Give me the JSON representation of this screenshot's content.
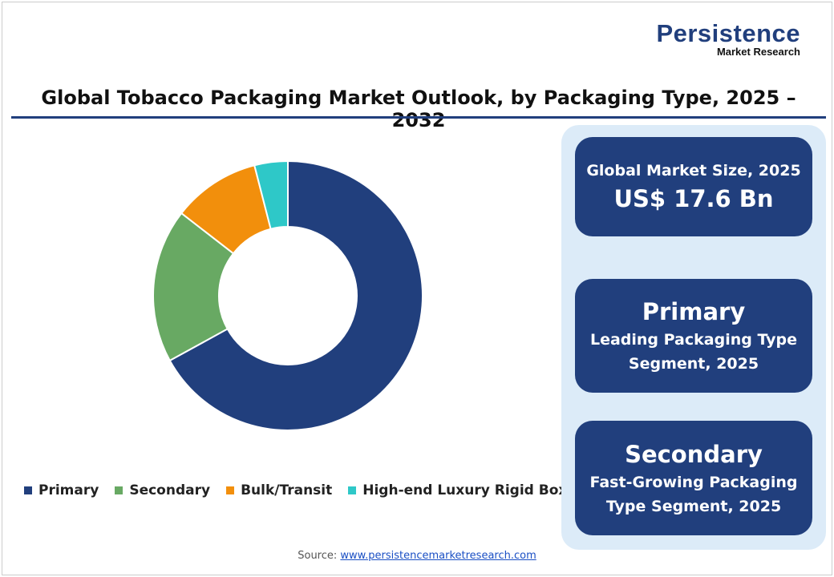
{
  "logo": {
    "line1": "Persistence",
    "line2": "Market Research"
  },
  "chart_data": {
    "type": "pie",
    "subtype": "donut",
    "title": "Global Tobacco Packaging Market Outlook, by Packaging Type, 2025 – 2032",
    "categories": [
      "Primary",
      "Secondary",
      "Bulk/Transit",
      "High-end Luxury Rigid Boxes"
    ],
    "values": [
      67,
      18.5,
      10.5,
      4
    ],
    "unit": "%",
    "colors": [
      "#213f7d",
      "#68a963",
      "#f28f0c",
      "#2ec8c8"
    ],
    "legend_position": "bottom"
  },
  "cards": [
    {
      "line1": "Global Market Size, 2025",
      "line2": "US$ 17.6 Bn"
    },
    {
      "big": "Primary",
      "line1": "Leading Packaging Type",
      "line2": "Segment, 2025"
    },
    {
      "big": "Secondary",
      "line1": "Fast-Growing Packaging",
      "line2": "Type Segment, 2025"
    }
  ],
  "source": {
    "label": "Source:",
    "link": "www.persistencemarketresearch.com"
  }
}
